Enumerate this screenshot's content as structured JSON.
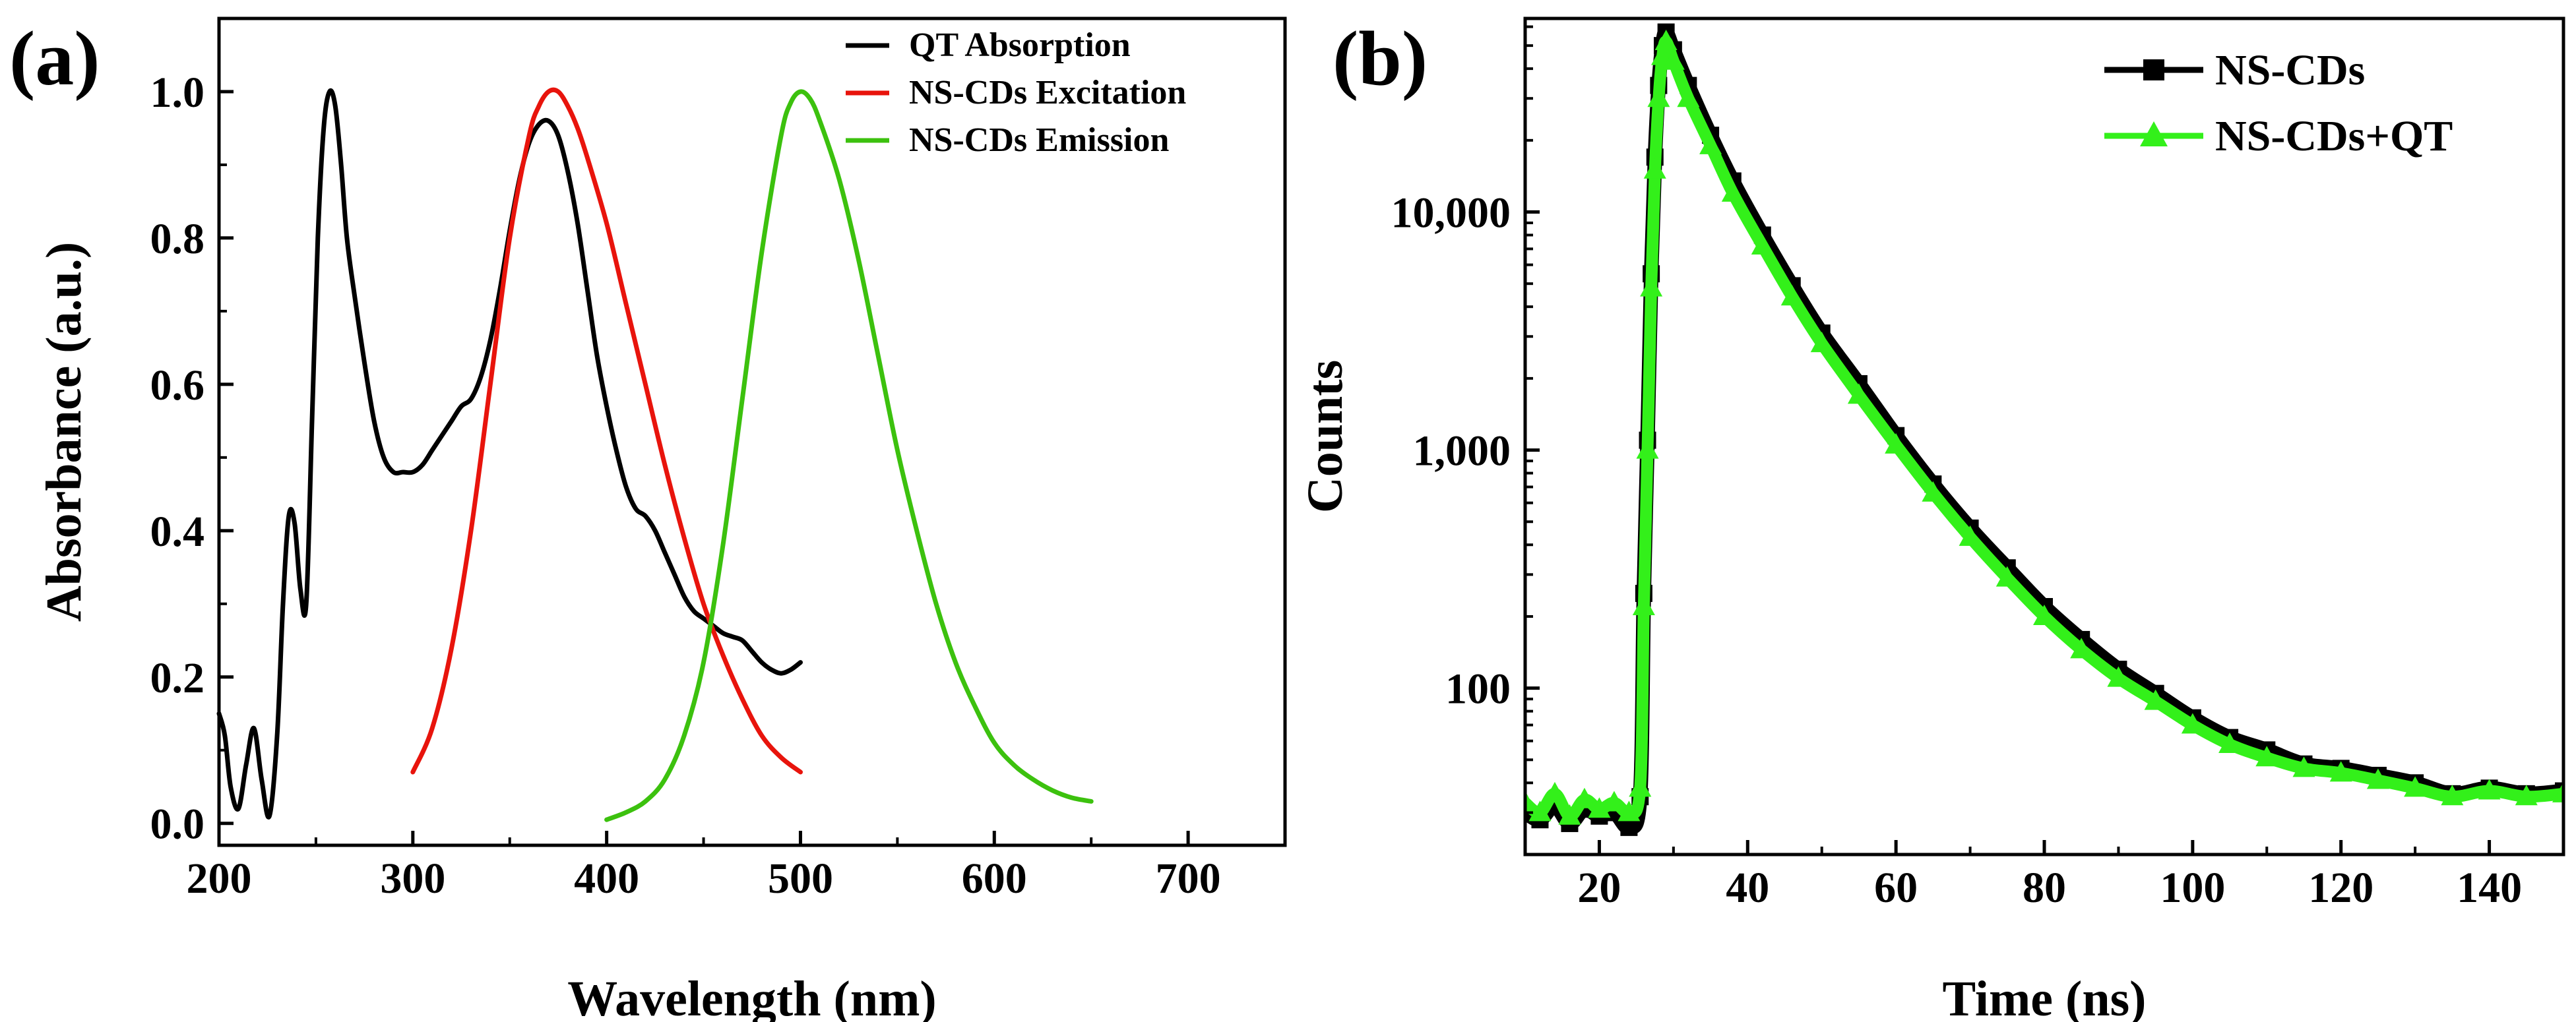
{
  "chart_data": [
    {
      "panel": "(a)",
      "type": "line",
      "xlabel": "Wavelength (nm)",
      "ylabel": "Absorbance (a.u.)",
      "xlim": [
        200,
        750
      ],
      "ylim": [
        -0.03,
        1.1
      ],
      "xticks": [
        200,
        300,
        400,
        500,
        600,
        700
      ],
      "xtick_labels": [
        "200",
        "300",
        "400",
        "500",
        "600",
        "700"
      ],
      "yticks": [
        0.0,
        0.2,
        0.4,
        0.6,
        0.8,
        1.0
      ],
      "ytick_labels": [
        "0.0",
        "0.2",
        "0.4",
        "0.6",
        "0.8",
        "1.0"
      ],
      "legend_position": "top-right",
      "series": [
        {
          "name": "QT Absorption",
          "color": "#000000",
          "x": [
            200,
            203,
            206,
            210,
            214,
            218,
            222,
            226,
            230,
            233,
            236,
            239,
            242,
            245,
            248,
            251,
            254,
            257,
            260,
            263,
            266,
            270,
            275,
            280,
            285,
            290,
            295,
            300,
            305,
            310,
            315,
            320,
            325,
            330,
            335,
            340,
            345,
            350,
            355,
            360,
            365,
            370,
            375,
            380,
            385,
            390,
            395,
            400,
            405,
            410,
            415,
            420,
            425,
            430,
            435,
            440,
            445,
            450,
            455,
            460,
            465,
            470,
            475,
            480,
            485,
            490,
            495,
            500
          ],
          "y": [
            0.15,
            0.12,
            0.05,
            0.02,
            0.08,
            0.13,
            0.06,
            0.01,
            0.12,
            0.3,
            0.42,
            0.41,
            0.32,
            0.3,
            0.55,
            0.8,
            0.95,
            1.0,
            0.98,
            0.9,
            0.8,
            0.72,
            0.63,
            0.55,
            0.5,
            0.48,
            0.48,
            0.48,
            0.49,
            0.51,
            0.53,
            0.55,
            0.57,
            0.58,
            0.61,
            0.66,
            0.73,
            0.81,
            0.88,
            0.93,
            0.955,
            0.96,
            0.94,
            0.89,
            0.82,
            0.73,
            0.64,
            0.57,
            0.51,
            0.46,
            0.43,
            0.42,
            0.4,
            0.37,
            0.34,
            0.31,
            0.29,
            0.28,
            0.27,
            0.26,
            0.255,
            0.25,
            0.235,
            0.22,
            0.21,
            0.205,
            0.21,
            0.22
          ]
        },
        {
          "name": "NS-CDs Excitation",
          "color": "#e8140c",
          "x": [
            300,
            310,
            320,
            330,
            340,
            350,
            360,
            365,
            370,
            375,
            380,
            385,
            390,
            400,
            410,
            420,
            430,
            440,
            450,
            460,
            470,
            480,
            490,
            500
          ],
          "y": [
            0.07,
            0.13,
            0.24,
            0.4,
            0.6,
            0.8,
            0.94,
            0.98,
            1.0,
            1.0,
            0.98,
            0.95,
            0.91,
            0.82,
            0.71,
            0.6,
            0.49,
            0.39,
            0.3,
            0.23,
            0.17,
            0.12,
            0.09,
            0.07
          ]
        },
        {
          "name": "NS-CDs Emission",
          "color": "#3cc10e",
          "x": [
            400,
            410,
            420,
            430,
            440,
            450,
            460,
            470,
            480,
            490,
            495,
            500,
            505,
            510,
            520,
            530,
            540,
            550,
            560,
            570,
            580,
            590,
            600,
            610,
            620,
            630,
            640,
            650
          ],
          "y": [
            0.005,
            0.015,
            0.03,
            0.06,
            0.12,
            0.22,
            0.38,
            0.58,
            0.78,
            0.94,
            0.985,
            1.0,
            0.99,
            0.96,
            0.88,
            0.77,
            0.64,
            0.51,
            0.4,
            0.3,
            0.22,
            0.16,
            0.11,
            0.08,
            0.06,
            0.045,
            0.035,
            0.03
          ]
        }
      ]
    },
    {
      "panel": "(b)",
      "type": "line",
      "yscale": "log",
      "xlabel": "Time (ns)",
      "ylabel": "Counts",
      "xlim": [
        10,
        150
      ],
      "ylim": [
        20,
        65000
      ],
      "xticks": [
        20,
        40,
        60,
        80,
        100,
        120,
        140
      ],
      "xtick_labels": [
        "20",
        "40",
        "60",
        "80",
        "100",
        "120",
        "140"
      ],
      "yticks": [
        100,
        1000,
        10000
      ],
      "ytick_labels": [
        "100",
        "1,000",
        "10,000"
      ],
      "legend_position": "top-right",
      "series": [
        {
          "name": "NS-CDs",
          "color": "#000000",
          "marker": "square",
          "x": [
            10,
            12,
            14,
            16,
            18,
            20,
            22,
            24,
            25.5,
            26,
            26.5,
            27,
            27.5,
            28,
            28.5,
            29,
            30,
            32,
            35,
            38,
            42,
            46,
            50,
            55,
            60,
            65,
            70,
            75,
            80,
            85,
            90,
            95,
            100,
            105,
            110,
            115,
            120,
            125,
            130,
            135,
            140,
            145,
            150
          ],
          "y": [
            30,
            28,
            32,
            27,
            31,
            29,
            30,
            26,
            35,
            250,
            1100,
            5500,
            17000,
            34000,
            50000,
            57000,
            48000,
            34000,
            21000,
            13500,
            8000,
            4900,
            3100,
            1900,
            1150,
            720,
            470,
            320,
            220,
            160,
            120,
            95,
            75,
            62,
            55,
            48,
            46,
            43,
            40,
            36,
            38,
            36,
            37
          ]
        },
        {
          "name": "NS-CDs+QT",
          "color": "#33f01a",
          "marker": "triangle",
          "x": [
            10,
            12,
            14,
            16,
            18,
            20,
            22,
            24,
            25.5,
            26,
            26.5,
            27,
            27.5,
            28,
            28.5,
            29,
            30,
            32,
            35,
            38,
            42,
            46,
            50,
            55,
            60,
            65,
            70,
            75,
            80,
            85,
            90,
            95,
            100,
            105,
            110,
            115,
            120,
            125,
            130,
            135,
            140,
            145,
            150
          ],
          "y": [
            33,
            30,
            36,
            29,
            34,
            31,
            33,
            30,
            38,
            220,
            1000,
            4800,
            15000,
            30000,
            45000,
            52000,
            43000,
            30000,
            19000,
            12000,
            7200,
            4400,
            2800,
            1700,
            1050,
            660,
            430,
            290,
            200,
            145,
            110,
            88,
            70,
            58,
            51,
            46,
            44,
            41,
            38,
            35,
            37,
            35,
            36
          ]
        }
      ]
    }
  ]
}
